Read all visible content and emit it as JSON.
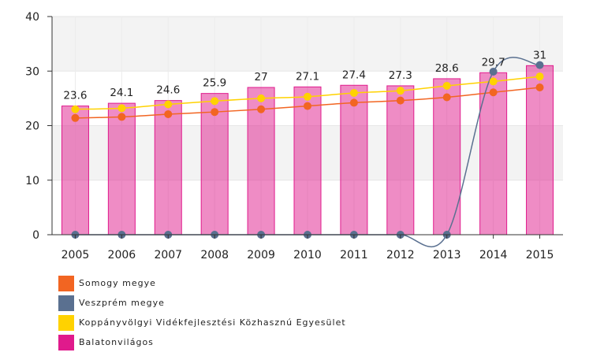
{
  "chart_data": {
    "type": "bar",
    "categories": [
      "2005",
      "2006",
      "2007",
      "2008",
      "2009",
      "2010",
      "2011",
      "2012",
      "2013",
      "2014",
      "2015"
    ],
    "ylim": [
      0,
      40
    ],
    "yticks": [
      0,
      10,
      20,
      30,
      40
    ],
    "grid": true,
    "legend_position": "bottom-left",
    "series": [
      {
        "name": "Balatonvilágos",
        "kind": "bar",
        "color": "#e01a8c",
        "values": [
          23.6,
          24.1,
          24.6,
          25.9,
          27,
          27.1,
          27.4,
          27.3,
          28.6,
          29.7,
          31
        ],
        "labels": [
          "23.6",
          "24.1",
          "24.6",
          "25.9",
          "27",
          "27.1",
          "27.4",
          "27.3",
          "28.6",
          "29.7",
          "31"
        ]
      },
      {
        "name": "Somogy megye",
        "kind": "line",
        "color": "#f26522",
        "values": [
          21.4,
          21.6,
          22.1,
          22.5,
          23.0,
          23.6,
          24.2,
          24.6,
          25.2,
          26.1,
          27.0
        ]
      },
      {
        "name": "Veszprém megye",
        "kind": "line",
        "color": "#5a7090",
        "values": [
          0,
          0,
          0,
          0,
          0,
          0,
          0,
          0,
          0,
          29.9,
          31.1
        ]
      },
      {
        "name": "Koppányvölgyi Vidékfejlesztési Közhasznú Egyesület",
        "kind": "line",
        "color": "#ffd200",
        "values": [
          23.0,
          23.2,
          23.9,
          24.5,
          25.0,
          25.3,
          26.0,
          26.4,
          27.3,
          28.1,
          29.0
        ]
      }
    ]
  },
  "legend": [
    {
      "label": "Somogy megye",
      "color": "#f26522"
    },
    {
      "label": "Veszprém megye",
      "color": "#5a7090"
    },
    {
      "label": "Koppányvölgyi Vidékfejlesztési Közhasznú Egyesület",
      "color": "#ffd200"
    },
    {
      "label": "Balatonvilágos",
      "color": "#e01a8c"
    }
  ]
}
